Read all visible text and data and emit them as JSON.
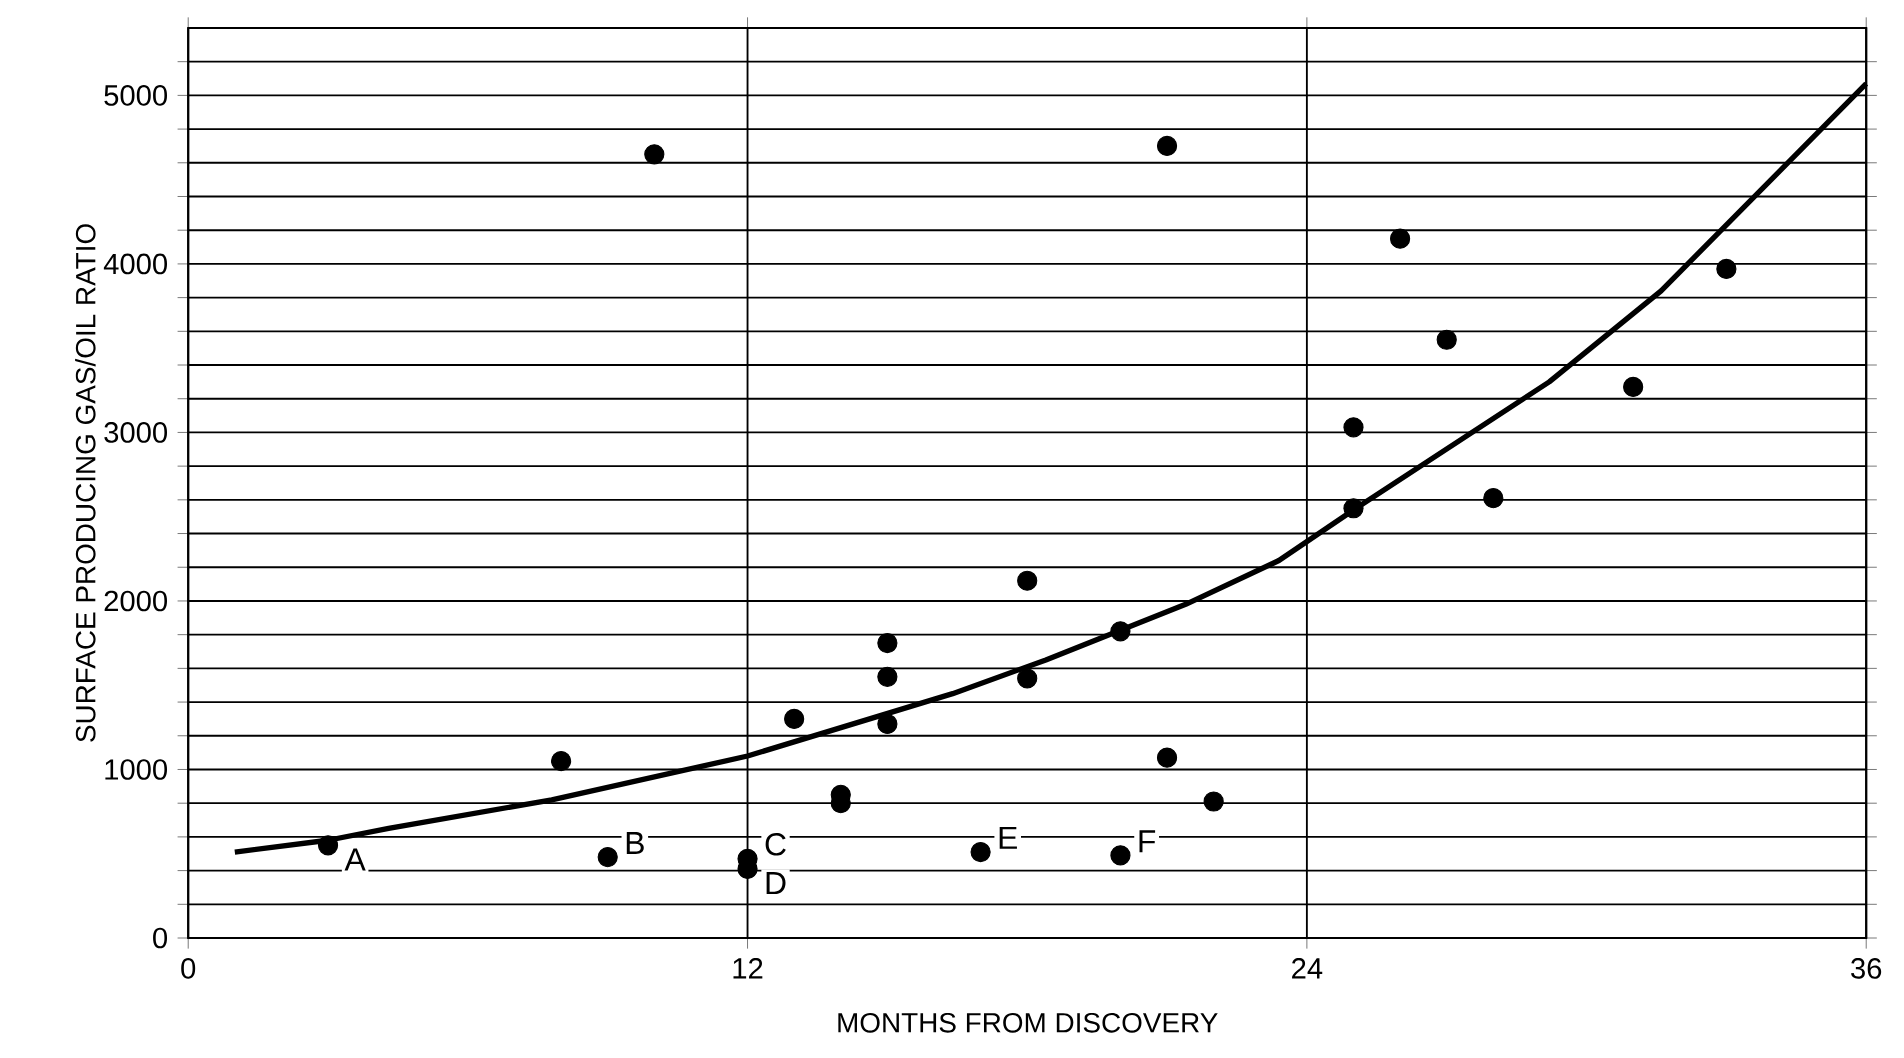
{
  "chart_data": {
    "type": "scatter",
    "xlabel": "MONTHS FROM DISCOVERY",
    "ylabel": "SURFACE PRODUCING GAS/OIL RATIO",
    "xlim": [
      0,
      36
    ],
    "ylim": [
      0,
      5400
    ],
    "xticks": [
      0,
      12,
      24,
      36
    ],
    "yticks": [
      0,
      {
        "value": 200,
        "label": null
      },
      {
        "value": 400,
        "label": null
      },
      {
        "value": 600,
        "label": null
      },
      {
        "value": 800,
        "label": null
      },
      1000,
      {
        "value": 1200,
        "label": null
      },
      {
        "value": 1400,
        "label": null
      },
      {
        "value": 1600,
        "label": null
      },
      {
        "value": 1800,
        "label": null
      },
      2000,
      {
        "value": 2200,
        "label": null
      },
      {
        "value": 2400,
        "label": null
      },
      {
        "value": 2600,
        "label": null
      },
      {
        "value": 2800,
        "label": null
      },
      3000,
      {
        "value": 3200,
        "label": null
      },
      {
        "value": 3400,
        "label": null
      },
      {
        "value": 3600,
        "label": null
      },
      {
        "value": 3800,
        "label": null
      },
      4000,
      {
        "value": 4200,
        "label": null
      },
      {
        "value": 4400,
        "label": null
      },
      {
        "value": 4600,
        "label": null
      },
      {
        "value": 4800,
        "label": null
      },
      5000,
      {
        "value": 5200,
        "label": null
      }
    ],
    "grid": true,
    "series": [
      {
        "color": "#000000",
        "marker": "circle",
        "x": [
          3,
          8,
          9,
          10,
          12,
          12,
          13,
          14,
          14,
          15,
          15,
          15,
          17,
          18,
          18,
          20,
          20,
          21,
          21,
          22,
          25,
          25,
          26,
          27,
          28,
          31,
          33
        ],
        "values": [
          550,
          1050,
          480,
          4650,
          470,
          410,
          1300,
          850,
          800,
          1750,
          1550,
          1270,
          510,
          2120,
          1540,
          1820,
          490,
          4700,
          1070,
          810,
          2550,
          3030,
          4150,
          3550,
          2610,
          3270,
          3970
        ]
      },
      {
        "type": "line",
        "color": "#000000",
        "marker": "none",
        "x": [
          1,
          3,
          4.3,
          7.8,
          12,
          16.4,
          18.4,
          21.4,
          23.4,
          25,
          29.2,
          31.6,
          36
        ],
        "values": [
          510,
          580,
          650,
          820,
          1080,
          1450,
          1650,
          1980,
          2240,
          2540,
          3300,
          3840,
          5070
        ]
      }
    ],
    "annotations": [
      {
        "text": "A",
        "x": 3,
        "y": 550
      },
      {
        "text": "B",
        "x": 9,
        "y": 480
      },
      {
        "text": "C",
        "x": 12,
        "y": 470
      },
      {
        "text": "D",
        "x": 12,
        "y": 410
      },
      {
        "text": "E",
        "x": 17,
        "y": 510
      },
      {
        "text": "F",
        "x": 20,
        "y": 490
      }
    ]
  }
}
